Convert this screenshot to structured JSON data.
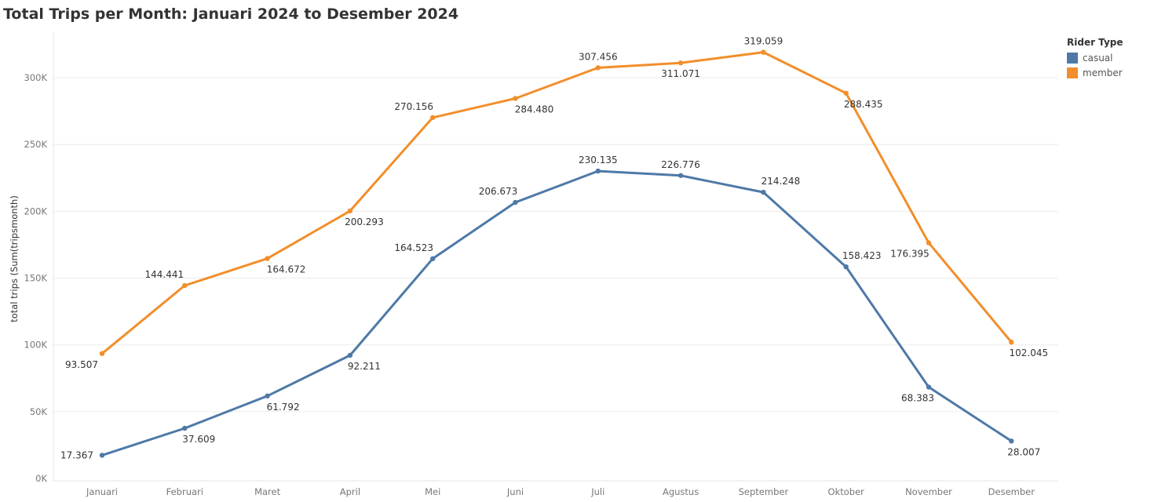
{
  "chart_data": {
    "type": "line",
    "title": "Total Trips per Month: Januari 2024 to Desember 2024",
    "xlabel": "",
    "ylabel": "total trips (Sum(tripsmonth)",
    "ylim": [
      0,
      330000
    ],
    "yticks": [
      0,
      50000,
      100000,
      150000,
      200000,
      250000,
      300000
    ],
    "ytick_labels": [
      "0K",
      "50K",
      "100K",
      "150K",
      "200K",
      "250K",
      "300K"
    ],
    "categories": [
      "Januari",
      "Februari",
      "Maret",
      "April",
      "Mei",
      "Juni",
      "Juli",
      "Agustus",
      "September",
      "Oktober",
      "November",
      "Desember"
    ],
    "grid": true,
    "legend": {
      "title": "Rider Type",
      "position": "top-right"
    },
    "series": [
      {
        "name": "casual",
        "color": "#4E79A7",
        "values": [
          17367,
          37609,
          61792,
          92211,
          164523,
          206673,
          230135,
          226776,
          214248,
          158423,
          68383,
          28007
        ],
        "labels": [
          "17.367",
          "37.609",
          "61.792",
          "92.211",
          "164.523",
          "206.673",
          "230.135",
          "226.776",
          "214.248",
          "158.423",
          "68.383",
          "28.007"
        ]
      },
      {
        "name": "member",
        "color": "#F28E2B",
        "values": [
          93507,
          144441,
          164672,
          200293,
          270156,
          284480,
          307456,
          311071,
          319059,
          288435,
          176395,
          102045
        ],
        "labels": [
          "93.507",
          "144.441",
          "164.672",
          "200.293",
          "270.156",
          "284.480",
          "307.456",
          "311.071",
          "319.059",
          "288.435",
          "176.395",
          "102.045"
        ]
      }
    ]
  }
}
